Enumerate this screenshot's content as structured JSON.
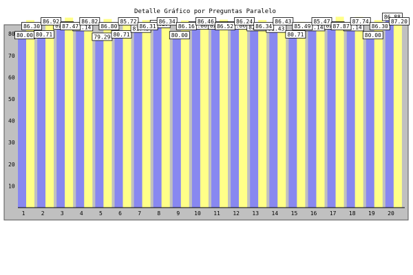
{
  "chart_data": {
    "type": "bar",
    "title": "Detalle Gráfico por Preguntas Paralelo",
    "xlabel": "",
    "ylabel": "",
    "ylim": [
      0,
      90
    ],
    "yticks": [
      10,
      20,
      30,
      40,
      50,
      60,
      70,
      80
    ],
    "grid": false,
    "legend": "none",
    "categories": [
      "1",
      "2",
      "3",
      "4",
      "5",
      "6",
      "7",
      "8",
      "9",
      "10",
      "11",
      "12",
      "13",
      "14",
      "15",
      "16",
      "17",
      "18",
      "19",
      "20"
    ],
    "series": [
      {
        "values": [
          80.0,
          80.71,
          82.86,
          82.14,
          79.29,
          80.71,
          81.43,
          83.57,
          80.0,
          82.86,
          82.86,
          82.86,
          82.14,
          81.43,
          80.71,
          82.14,
          82.86,
          82.14,
          80.0,
          86.88
        ],
        "color": "#8888f0"
      },
      {
        "values": [
          86.3,
          86.92,
          87.47,
          86.82,
          86.8,
          85.72,
          86.31,
          86.34,
          86.16,
          86.46,
          86.52,
          86.24,
          86.34,
          86.43,
          85.49,
          85.47,
          87.87,
          87.74,
          86.3,
          87.2
        ],
        "color": "#ffff88"
      }
    ]
  },
  "colors": {
    "plot_background": "#c0c0c0",
    "frame_background": "#ffffff",
    "label_box": "#ffffff"
  }
}
